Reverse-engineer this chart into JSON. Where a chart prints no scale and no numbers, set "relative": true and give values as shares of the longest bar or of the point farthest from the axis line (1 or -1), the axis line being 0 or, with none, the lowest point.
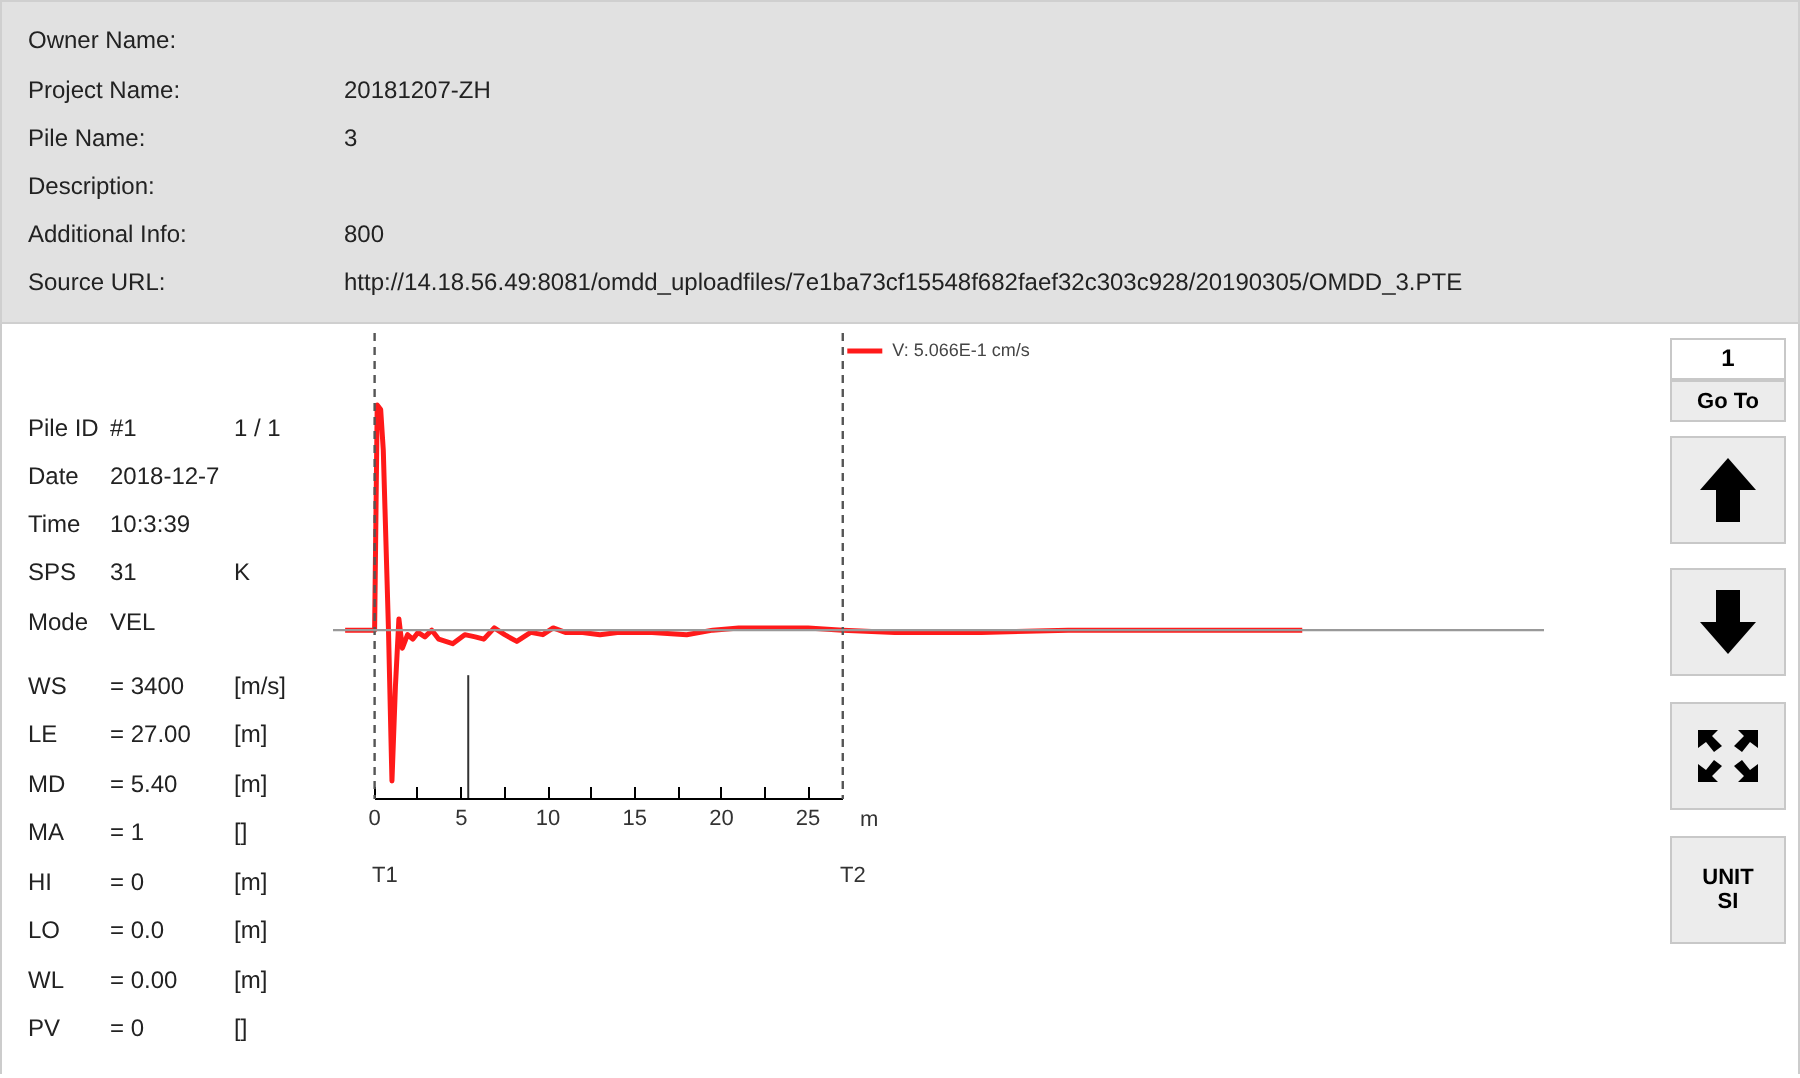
{
  "chart_data": {
    "type": "line",
    "relative": true,
    "legend": "top",
    "xlabel": "m",
    "xlim": [
      -2.4,
      67.5
    ],
    "xticks": [
      0,
      {
        "value": 2.5,
        "label": null
      },
      5,
      {
        "value": 7.5,
        "label": null
      },
      10,
      {
        "value": 12.5,
        "label": null
      },
      15,
      {
        "value": 17.5,
        "label": null
      },
      20,
      {
        "value": 22.5,
        "label": null
      },
      25
    ],
    "series": [
      {
        "name": "V: 5.066E-1 cm/s",
        "color": "#ff1a1a",
        "x": [
          -1.7,
          -0.1,
          0,
          0.15,
          0.35,
          0.5,
          0.8,
          1.0,
          1.2,
          1.4,
          1.6,
          1.9,
          2.2,
          2.5,
          2.9,
          3.3,
          3.7,
          4.5,
          5.2,
          5.8,
          6.3,
          6.9,
          7.5,
          8.2,
          9.0,
          9.7,
          10.3,
          11,
          12,
          13,
          14,
          16,
          18,
          19.5,
          21,
          23,
          25,
          27,
          30,
          35,
          40,
          45,
          50,
          53.5
        ],
        "values": [
          0,
          0,
          0,
          1.0,
          0.98,
          0.8,
          0,
          -0.67,
          -0.25,
          0.05,
          -0.08,
          -0.02,
          -0.04,
          -0.01,
          -0.03,
          0,
          -0.04,
          -0.06,
          -0.02,
          -0.03,
          -0.04,
          0.01,
          -0.02,
          -0.05,
          -0.01,
          -0.02,
          0.01,
          -0.01,
          -0.01,
          -0.02,
          -0.01,
          -0.01,
          -0.02,
          0,
          0.01,
          0.01,
          0.01,
          0,
          -0.01,
          -0.01,
          0,
          0,
          0,
          0
        ]
      }
    ],
    "ref_lines": [
      {
        "axis": "x",
        "value": 0,
        "label": "T1",
        "line_style": "dashed",
        "color": "#555555"
      },
      {
        "axis": "x",
        "value": 27,
        "label": "T2",
        "line_style": "dashed",
        "color": "#555555"
      },
      {
        "axis": "x",
        "value": 5.4,
        "color": "#333333"
      },
      {
        "axis": "y",
        "value": 0,
        "color": "#999999"
      }
    ],
    "annotations": [
      "Owner Name:",
      "Project Name:",
      "Pile Name:",
      "Description:",
      "Additional Info:",
      "Source URL:",
      "20181207-ZH",
      "3",
      "800",
      "http://14.18.56.49:8081/omdd_uploadfiles/7e1ba73cf15548f682faef32c303c928/20190305/OMDD_3.PTE",
      "Pile ID",
      "#1",
      "1 / 1",
      "Date",
      "2018-12-7",
      "Time",
      "10:3:39",
      "SPS",
      "31",
      "K",
      "Mode",
      "VEL",
      "WS",
      "= 3400",
      "[m/s]",
      "LE",
      "= 27.00",
      "[m]",
      "MD",
      "= 5.40",
      "[m]",
      "MA",
      "= 1",
      "[]",
      "HI",
      "= 0",
      "[m]",
      "LO",
      "= 0.0",
      "[m]",
      "WL",
      "= 0.00",
      "[m]",
      "PV",
      "= 0",
      "[]",
      "1",
      "Go To",
      "UNIT SI"
    ]
  }
}
